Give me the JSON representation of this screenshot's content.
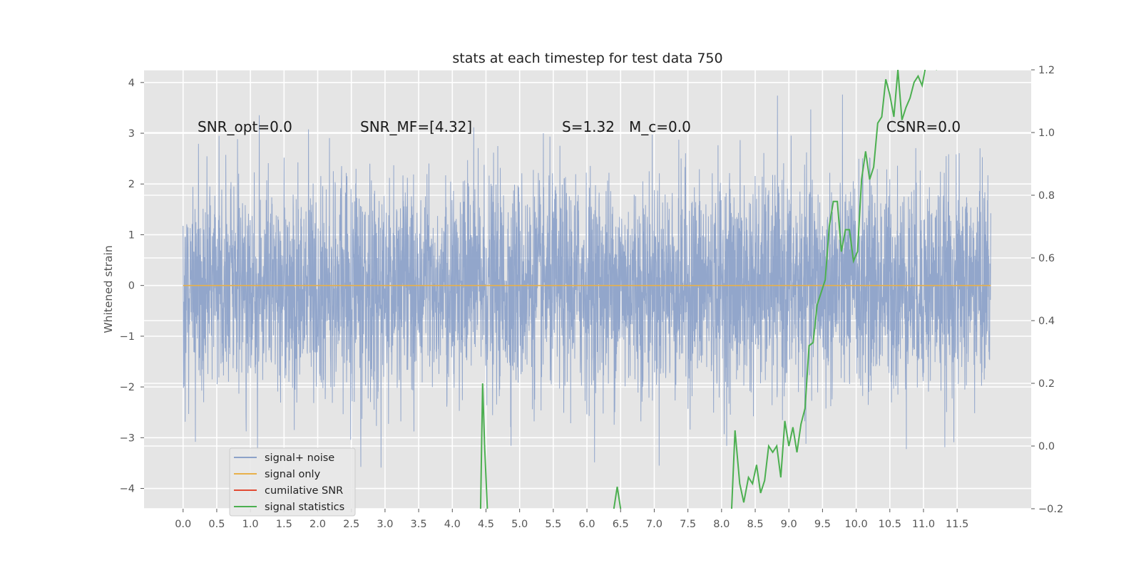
{
  "chart_data": {
    "type": "line",
    "title": "stats at each timestep for test data 750",
    "ylabel": "Whitened strain",
    "xlim": [
      -0.58,
      12.6
    ],
    "ylim": [
      -4.4,
      4.25
    ],
    "y2lim": [
      -0.2,
      1.2
    ],
    "x_ticks": [
      "0.0",
      "0.5",
      "1.0",
      "1.5",
      "2.0",
      "2.5",
      "3.0",
      "3.5",
      "4.0",
      "4.5",
      "5.0",
      "5.5",
      "6.0",
      "6.5",
      "7.0",
      "7.5",
      "8.0",
      "8.5",
      "9.0",
      "9.5",
      "10.0",
      "10.5",
      "11.0",
      "11.5"
    ],
    "y_ticks": [
      "4",
      "3",
      "2",
      "1",
      "0",
      "−1",
      "−2",
      "−3",
      "−4"
    ],
    "y2_ticks": [
      "1.2",
      "1.0",
      "0.8",
      "0.6",
      "0.4",
      "0.2",
      "0.0",
      "−0.2"
    ],
    "grid": true,
    "legend_position": "lower left",
    "annotations": [
      {
        "text": "SNR_opt=0.0"
      },
      {
        "text": "SNR_MF=[4.32]"
      },
      {
        "text": "S=1.32"
      },
      {
        "text": "M_c=0.0"
      },
      {
        "text": "CSNR=0.0"
      }
    ],
    "series": [
      {
        "name": "signal+ noise",
        "color": "#8da2c9",
        "axis": "left",
        "kind": "whitened noise, approx. unit std, range -4.1 to 3.9",
        "x_range": [
          0.0,
          12.0
        ]
      },
      {
        "name": "signal only",
        "color": "#e8b04a",
        "axis": "left",
        "x": [
          0.0,
          12.0
        ],
        "y": [
          0.0,
          0.0
        ]
      },
      {
        "name": "cumilative SNR",
        "color": "#e24a33",
        "axis": "right",
        "x": [],
        "y": []
      },
      {
        "name": "signal statistics",
        "color": "#4caf50",
        "axis": "right",
        "x": [
          4.42,
          4.45,
          4.48,
          4.52,
          6.4,
          6.45,
          6.5,
          8.15,
          8.2,
          8.27,
          8.33,
          8.4,
          8.46,
          8.52,
          8.58,
          8.64,
          8.7,
          8.76,
          8.82,
          8.88,
          8.94,
          9.0,
          9.06,
          9.12,
          9.18,
          9.24,
          9.3,
          9.36,
          9.42,
          9.48,
          9.54,
          9.6,
          9.66,
          9.72,
          9.78,
          9.84,
          9.9,
          9.96,
          10.02,
          10.08,
          10.14,
          10.2,
          10.26,
          10.32,
          10.38,
          10.44,
          10.5,
          10.56,
          10.62,
          10.68,
          10.74,
          10.8,
          10.86,
          10.92,
          10.98,
          11.04,
          11.1,
          11.2
        ],
        "y": [
          -0.2,
          0.2,
          0.0,
          -0.2,
          -0.2,
          -0.13,
          -0.2,
          -0.2,
          0.05,
          -0.12,
          -0.18,
          -0.1,
          -0.12,
          -0.06,
          -0.15,
          -0.11,
          0.0,
          -0.02,
          0.0,
          -0.1,
          0.08,
          0.0,
          0.06,
          -0.02,
          0.07,
          0.12,
          0.32,
          0.33,
          0.45,
          0.49,
          0.53,
          0.7,
          0.78,
          0.78,
          0.62,
          0.69,
          0.69,
          0.59,
          0.62,
          0.85,
          0.94,
          0.85,
          0.89,
          1.03,
          1.05,
          1.17,
          1.12,
          1.05,
          1.2,
          1.04,
          1.08,
          1.11,
          1.16,
          1.18,
          1.15,
          1.22,
          1.22,
          1.2
        ]
      }
    ]
  }
}
